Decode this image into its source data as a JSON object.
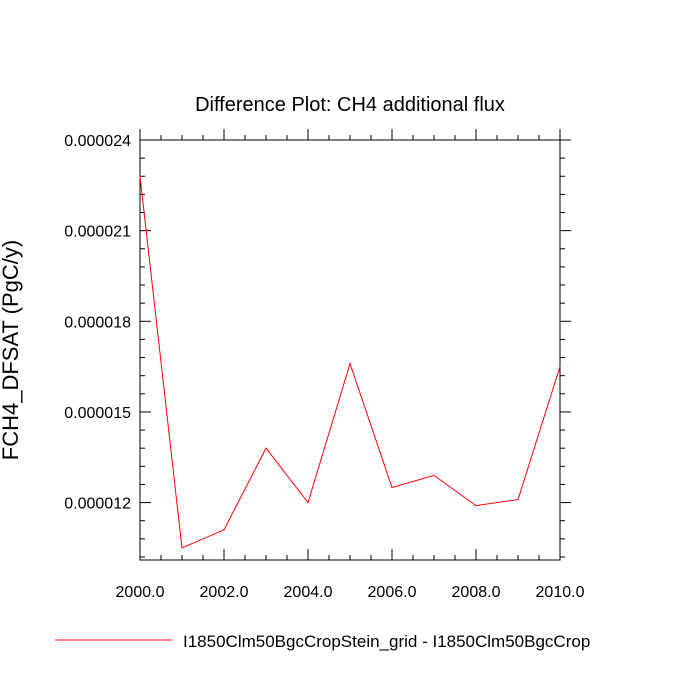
{
  "chart_data": {
    "type": "line",
    "title": "Difference Plot: CH4 additional flux",
    "ylabel": "FCH4_DFSAT  (PgC/y)",
    "xlabel": "",
    "xlim": [
      2000,
      2010
    ],
    "ylim": [
      1.01e-05,
      2.4e-05
    ],
    "x_ticks": [
      2000,
      2002,
      2004,
      2006,
      2008,
      2010
    ],
    "x_tick_labels": [
      "2000.0",
      "2002.0",
      "2004.0",
      "2006.0",
      "2008.0",
      "2010.0"
    ],
    "y_ticks": [
      1.2e-05,
      1.5e-05,
      1.8e-05,
      2.1e-05,
      2.4e-05
    ],
    "y_tick_labels": [
      "0.000012",
      "0.000015",
      "0.000018",
      "0.000021",
      "0.000024"
    ],
    "series": [
      {
        "name": "I1850Clm50BgcCropStein_grid - I1850Clm50BgcCrop",
        "color": "#ff0000",
        "x": [
          2000,
          2001,
          2002,
          2003,
          2004,
          2005,
          2006,
          2007,
          2008,
          2009,
          2010
        ],
        "y": [
          2.28e-05,
          1.05e-05,
          1.11e-05,
          1.38e-05,
          1.2e-05,
          1.66e-05,
          1.25e-05,
          1.29e-05,
          1.19e-05,
          1.21e-05,
          1.65e-05
        ]
      }
    ],
    "legend_position": "bottom",
    "grid": false
  }
}
